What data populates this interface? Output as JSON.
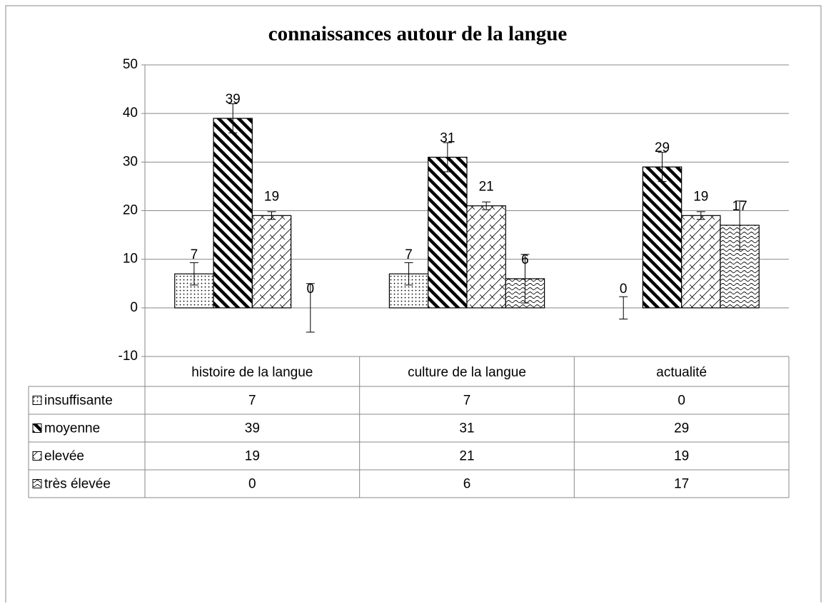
{
  "chart_data": {
    "type": "bar",
    "title": "connaissances autour de la langue",
    "categories": [
      "histoire de la langue",
      "culture de la langue",
      "actualité"
    ],
    "series": [
      {
        "name": "insuffisante",
        "color": "#000000",
        "pattern": "dots",
        "values": [
          7,
          7,
          0
        ],
        "errors": [
          2.3,
          2.3,
          2.3
        ]
      },
      {
        "name": "moyenne",
        "color": "#000000",
        "pattern": "stripes",
        "values": [
          39,
          31,
          29
        ],
        "errors": [
          3,
          3,
          3
        ]
      },
      {
        "name": "elevée",
        "color": "#000000",
        "pattern": "lattice",
        "values": [
          19,
          21,
          19
        ],
        "errors": [
          0.8,
          0.8,
          0.8
        ]
      },
      {
        "name": "très élevée",
        "color": "#000000",
        "pattern": "waves",
        "values": [
          0,
          6,
          17
        ],
        "errors": [
          5,
          5,
          5
        ]
      }
    ],
    "ylim": [
      -10,
      50
    ],
    "yticks": [
      -10,
      0,
      10,
      20,
      30,
      40,
      50
    ],
    "grid": true,
    "data_table": true
  }
}
